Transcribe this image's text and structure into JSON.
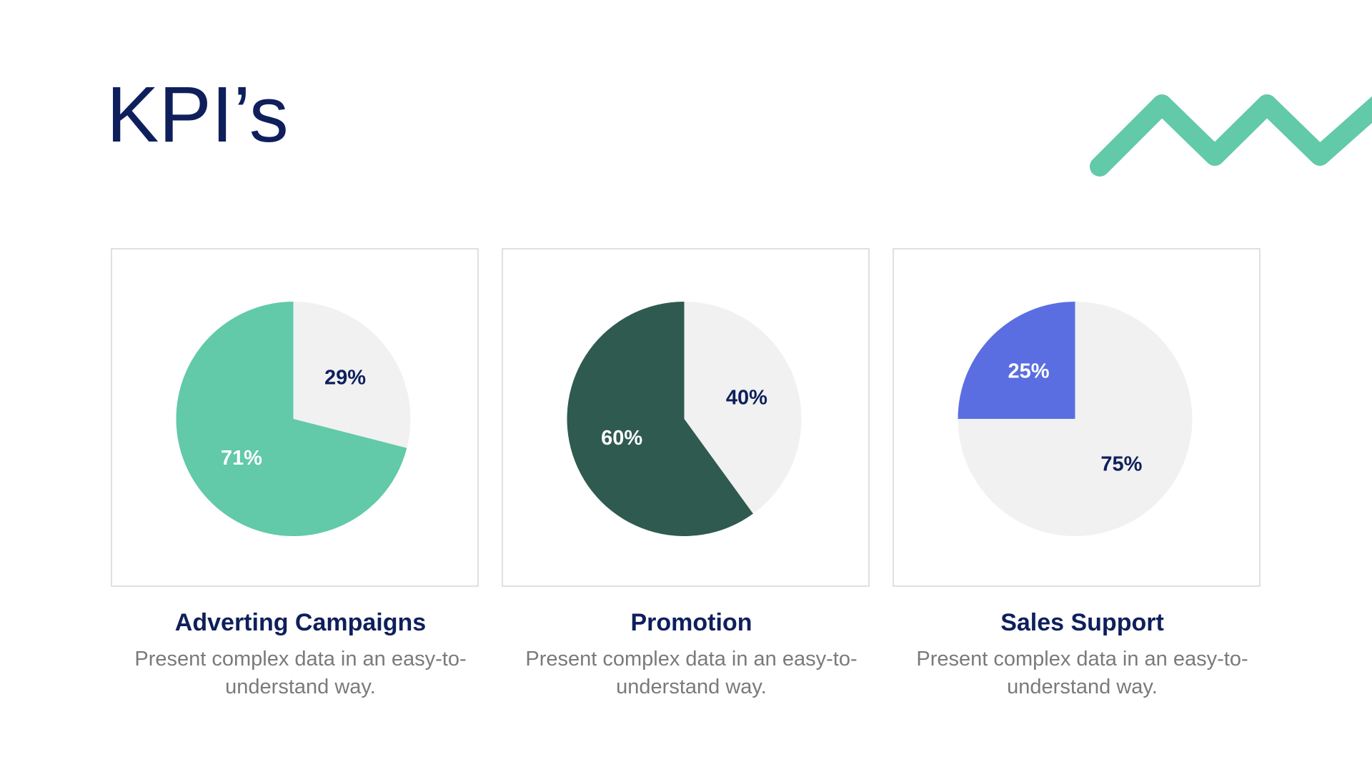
{
  "title": "KPI’s",
  "chart_data": [
    {
      "type": "pie",
      "title": "Adverting Campaigns",
      "subtitle": "Present complex data in an easy-to-understand way.",
      "values": [
        29,
        71
      ],
      "value_labels": [
        "29%",
        "71%"
      ],
      "colors": [
        "#f1f1f1",
        "#62c9a9"
      ],
      "label_colors": [
        "#0e1f5b",
        "#ffffff"
      ]
    },
    {
      "type": "pie",
      "title": "Promotion",
      "subtitle": "Present complex data in an easy-to-understand way.",
      "values": [
        40,
        60
      ],
      "value_labels": [
        "40%",
        "60%"
      ],
      "colors": [
        "#f1f1f1",
        "#2f5a50"
      ],
      "label_colors": [
        "#0e1f5b",
        "#ffffff"
      ]
    },
    {
      "type": "pie",
      "title": "Sales Support",
      "subtitle": "Present complex data in an easy-to-understand way.",
      "values": [
        75,
        25
      ],
      "value_labels": [
        "75%",
        "25%"
      ],
      "colors": [
        "#f1f1f1",
        "#5b6ee1"
      ],
      "label_colors": [
        "#0e1f5b",
        "#ffffff"
      ]
    }
  ]
}
